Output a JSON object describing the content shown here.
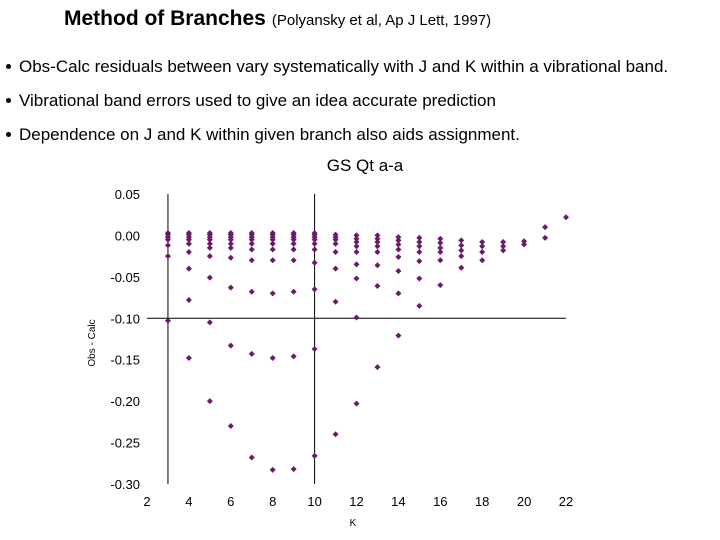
{
  "slide": {
    "title": "Method of Branches",
    "citation": "(Polyansky et al, Ap J Lett, 1997)",
    "bullets": [
      "Obs-Calc residuals between vary systematically with J and K within a vibrational band.",
      "Vibrational band errors used to give an idea accurate prediction",
      "Dependence on J and K within given branch also aids assignment."
    ]
  },
  "chart_data": {
    "type": "scatter",
    "title": "GS Qt a-a",
    "xlabel": "K",
    "ylabel": "Obs - Calc",
    "xlim": [
      2,
      22
    ],
    "ylim": [
      -0.3,
      0.05
    ],
    "x_ticks": [
      "2",
      "4",
      "6",
      "8",
      "10",
      "12",
      "14",
      "16",
      "18",
      "20",
      "22"
    ],
    "y_ticks": [
      "0.05",
      "0.00",
      "-0.05",
      "-0.10",
      "-0.15",
      "-0.20",
      "-0.25",
      "-0.30"
    ],
    "reference_lines": {
      "x": 10,
      "y": -0.1
    },
    "marker_color": "#6b1a6b",
    "grid": false,
    "legend": "none",
    "points": [
      [
        3,
        0.003
      ],
      [
        3,
        0.001
      ],
      [
        3,
        -0.002
      ],
      [
        3,
        -0.005
      ],
      [
        3,
        -0.012
      ],
      [
        3,
        -0.025
      ],
      [
        3,
        -0.103
      ],
      [
        4,
        0.003
      ],
      [
        4,
        0.001
      ],
      [
        4,
        -0.002
      ],
      [
        4,
        -0.005
      ],
      [
        4,
        -0.01
      ],
      [
        4,
        -0.02
      ],
      [
        4,
        -0.04
      ],
      [
        4,
        -0.078
      ],
      [
        4,
        -0.148
      ],
      [
        5,
        0.003
      ],
      [
        5,
        0.001
      ],
      [
        5,
        -0.002
      ],
      [
        5,
        -0.005
      ],
      [
        5,
        -0.01
      ],
      [
        5,
        -0.015
      ],
      [
        5,
        -0.025
      ],
      [
        5,
        -0.051
      ],
      [
        5,
        -0.105
      ],
      [
        5,
        -0.2
      ],
      [
        6,
        0.003
      ],
      [
        6,
        0.001
      ],
      [
        6,
        -0.002
      ],
      [
        6,
        -0.005
      ],
      [
        6,
        -0.01
      ],
      [
        6,
        -0.015
      ],
      [
        6,
        -0.027
      ],
      [
        6,
        -0.063
      ],
      [
        6,
        -0.133
      ],
      [
        6,
        -0.23
      ],
      [
        7,
        0.003
      ],
      [
        7,
        0.001
      ],
      [
        7,
        -0.002
      ],
      [
        7,
        -0.005
      ],
      [
        7,
        -0.01
      ],
      [
        7,
        -0.017
      ],
      [
        7,
        -0.03
      ],
      [
        7,
        -0.068
      ],
      [
        7,
        -0.143
      ],
      [
        7,
        -0.268
      ],
      [
        8,
        0.003
      ],
      [
        8,
        0.001
      ],
      [
        8,
        -0.002
      ],
      [
        8,
        -0.005
      ],
      [
        8,
        -0.01
      ],
      [
        8,
        -0.017
      ],
      [
        8,
        -0.03
      ],
      [
        8,
        -0.07
      ],
      [
        8,
        -0.148
      ],
      [
        8,
        -0.283
      ],
      [
        9,
        0.003
      ],
      [
        9,
        0.001
      ],
      [
        9,
        -0.002
      ],
      [
        9,
        -0.005
      ],
      [
        9,
        -0.01
      ],
      [
        9,
        -0.017
      ],
      [
        9,
        -0.03
      ],
      [
        9,
        -0.068
      ],
      [
        9,
        -0.146
      ],
      [
        9,
        -0.282
      ],
      [
        10,
        0.003
      ],
      [
        10,
        0.001
      ],
      [
        10,
        -0.002
      ],
      [
        10,
        -0.005
      ],
      [
        10,
        -0.01
      ],
      [
        10,
        -0.017
      ],
      [
        10,
        -0.033
      ],
      [
        10,
        -0.065
      ],
      [
        10,
        -0.137
      ],
      [
        10,
        -0.266
      ],
      [
        11,
        0.001
      ],
      [
        11,
        -0.002
      ],
      [
        11,
        -0.005
      ],
      [
        11,
        -0.01
      ],
      [
        11,
        -0.02
      ],
      [
        11,
        -0.04
      ],
      [
        11,
        -0.08
      ],
      [
        11,
        -0.24
      ],
      [
        12,
        0.0
      ],
      [
        12,
        -0.004
      ],
      [
        12,
        -0.008
      ],
      [
        12,
        -0.013
      ],
      [
        12,
        -0.02
      ],
      [
        12,
        -0.035
      ],
      [
        12,
        -0.052
      ],
      [
        12,
        -0.099
      ],
      [
        12,
        -0.203
      ],
      [
        13,
        0.0
      ],
      [
        13,
        -0.004
      ],
      [
        13,
        -0.008
      ],
      [
        13,
        -0.013
      ],
      [
        13,
        -0.02
      ],
      [
        13,
        -0.036
      ],
      [
        13,
        -0.061
      ],
      [
        13,
        -0.159
      ],
      [
        14,
        -0.002
      ],
      [
        14,
        -0.006
      ],
      [
        14,
        -0.011
      ],
      [
        14,
        -0.017
      ],
      [
        14,
        -0.026
      ],
      [
        14,
        -0.043
      ],
      [
        14,
        -0.07
      ],
      [
        14,
        -0.121
      ],
      [
        15,
        -0.003
      ],
      [
        15,
        -0.008
      ],
      [
        15,
        -0.013
      ],
      [
        15,
        -0.02
      ],
      [
        15,
        -0.031
      ],
      [
        15,
        -0.052
      ],
      [
        15,
        -0.085
      ],
      [
        16,
        -0.004
      ],
      [
        16,
        -0.009
      ],
      [
        16,
        -0.015
      ],
      [
        16,
        -0.02
      ],
      [
        16,
        -0.03
      ],
      [
        16,
        -0.06
      ],
      [
        17,
        -0.006
      ],
      [
        17,
        -0.012
      ],
      [
        17,
        -0.018
      ],
      [
        17,
        -0.025
      ],
      [
        17,
        -0.039
      ],
      [
        18,
        -0.008
      ],
      [
        18,
        -0.013
      ],
      [
        18,
        -0.02
      ],
      [
        18,
        -0.03
      ],
      [
        19,
        -0.008
      ],
      [
        19,
        -0.013
      ],
      [
        19,
        -0.018
      ],
      [
        20,
        -0.007
      ],
      [
        20,
        -0.011
      ],
      [
        21,
        0.01
      ],
      [
        21,
        -0.003
      ],
      [
        22,
        0.022
      ]
    ]
  }
}
